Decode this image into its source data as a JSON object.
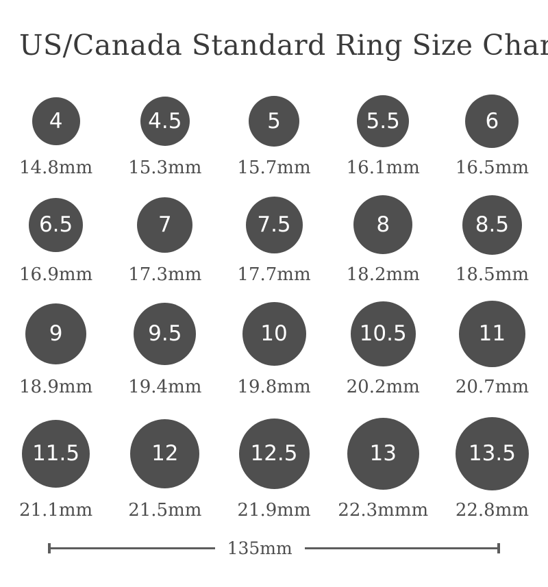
{
  "title": "US/Canada Standard Ring Size Chart",
  "colors": {
    "title_text": "#3a3a3a",
    "circle_fill": "#4f4f4f",
    "circle_text": "#ffffff",
    "label_text": "#4d4d4d",
    "scale_line": "#5c5c5c"
  },
  "scale_bar": {
    "label": "135mm",
    "length_mm": 135
  },
  "chart_data": {
    "type": "table",
    "title": "US/Canada Standard Ring Size Chart",
    "columns": [
      "ring_size",
      "inner_diameter"
    ],
    "layout": "5 columns x 4 rows of proportionally sized circles",
    "rows": [
      [
        {
          "size": "4",
          "diameter_label": "14.8mm",
          "diameter_mm": 14.8
        },
        {
          "size": "4.5",
          "diameter_label": "15.3mm",
          "diameter_mm": 15.3
        },
        {
          "size": "5",
          "diameter_label": "15.7mm",
          "diameter_mm": 15.7
        },
        {
          "size": "5.5",
          "diameter_label": "16.1mm",
          "diameter_mm": 16.1
        },
        {
          "size": "6",
          "diameter_label": "16.5mm",
          "diameter_mm": 16.5
        }
      ],
      [
        {
          "size": "6.5",
          "diameter_label": "16.9mm",
          "diameter_mm": 16.9
        },
        {
          "size": "7",
          "diameter_label": "17.3mm",
          "diameter_mm": 17.3
        },
        {
          "size": "7.5",
          "diameter_label": "17.7mm",
          "diameter_mm": 17.7
        },
        {
          "size": "8",
          "diameter_label": "18.2mm",
          "diameter_mm": 18.2
        },
        {
          "size": "8.5",
          "diameter_label": "18.5mm",
          "diameter_mm": 18.5
        }
      ],
      [
        {
          "size": "9",
          "diameter_label": "18.9mm",
          "diameter_mm": 18.9
        },
        {
          "size": "9.5",
          "diameter_label": "19.4mm",
          "diameter_mm": 19.4
        },
        {
          "size": "10",
          "diameter_label": "19.8mm",
          "diameter_mm": 19.8
        },
        {
          "size": "10.5",
          "diameter_label": "20.2mm",
          "diameter_mm": 20.2
        },
        {
          "size": "11",
          "diameter_label": "20.7mm",
          "diameter_mm": 20.7
        }
      ],
      [
        {
          "size": "11.5",
          "diameter_label": "21.1mm",
          "diameter_mm": 21.1
        },
        {
          "size": "12",
          "diameter_label": "21.5mm",
          "diameter_mm": 21.5
        },
        {
          "size": "12.5",
          "diameter_label": "21.9mm",
          "diameter_mm": 21.9
        },
        {
          "size": "13",
          "diameter_label": "22.3mmm",
          "diameter_mm": 22.3
        },
        {
          "size": "13.5",
          "diameter_label": "22.8mm",
          "diameter_mm": 22.8
        }
      ]
    ]
  }
}
